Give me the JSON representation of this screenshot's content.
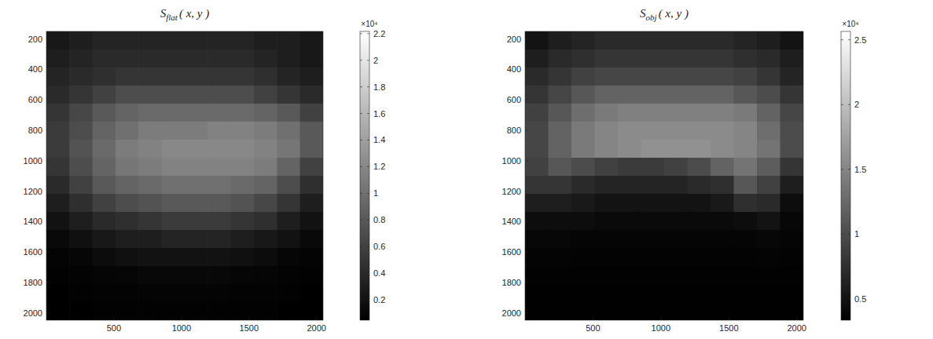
{
  "chart_data": [
    {
      "type": "heatmap",
      "title": "S",
      "title_subscript": "flat",
      "title_suffix": "( x, y )",
      "xlim": [
        0,
        2048
      ],
      "ylim": [
        150,
        2048
      ],
      "xticks": [
        500,
        1000,
        1500,
        2000
      ],
      "yticks": [
        200,
        400,
        600,
        800,
        1000,
        1200,
        1400,
        1600,
        1800,
        2000
      ],
      "cells": [
        [
          2500,
          3000,
          3500,
          3500,
          3500,
          3500,
          3500,
          3500,
          3500,
          3000,
          3000,
          2500
        ],
        [
          3000,
          3500,
          4000,
          4000,
          4000,
          4000,
          4000,
          4000,
          4000,
          3500,
          3000,
          2500
        ],
        [
          3500,
          4000,
          4500,
          5000,
          5000,
          5000,
          5000,
          5000,
          5000,
          4500,
          3500,
          3000
        ],
        [
          4000,
          5000,
          6000,
          7000,
          7000,
          7000,
          7000,
          7000,
          7000,
          6000,
          5000,
          4000
        ],
        [
          5000,
          6500,
          8000,
          9000,
          9500,
          9500,
          9500,
          9500,
          9500,
          9000,
          8000,
          6000
        ],
        [
          5500,
          7000,
          9000,
          10000,
          11000,
          11000,
          11000,
          11500,
          11500,
          11000,
          10000,
          8000
        ],
        [
          5500,
          7500,
          9500,
          11000,
          11500,
          12000,
          12000,
          12000,
          12000,
          11500,
          10500,
          8000
        ],
        [
          5000,
          7000,
          9000,
          10500,
          11000,
          11500,
          11500,
          11500,
          11500,
          11000,
          9000,
          6000
        ],
        [
          4000,
          6000,
          8000,
          9000,
          9500,
          10000,
          10000,
          10000,
          9500,
          9000,
          7000,
          4500
        ],
        [
          3000,
          4500,
          6000,
          7000,
          7500,
          8000,
          8000,
          8000,
          7500,
          6500,
          5000,
          3000
        ],
        [
          2000,
          3000,
          4000,
          4500,
          5000,
          5500,
          5500,
          5500,
          5000,
          4500,
          3000,
          2000
        ],
        [
          1200,
          1800,
          2500,
          3000,
          3000,
          3500,
          3500,
          3500,
          3000,
          2500,
          2000,
          1200
        ],
        [
          800,
          1000,
          1500,
          1800,
          2000,
          2000,
          2000,
          2000,
          1800,
          1500,
          1000,
          800
        ],
        [
          600,
          700,
          900,
          1000,
          1100,
          1100,
          1100,
          1100,
          1000,
          900,
          700,
          600
        ],
        [
          500,
          600,
          700,
          700,
          800,
          800,
          800,
          800,
          700,
          700,
          600,
          500
        ],
        [
          500,
          500,
          600,
          600,
          600,
          600,
          600,
          600,
          600,
          600,
          500,
          500
        ]
      ],
      "colorbar_range": [
        460,
        22170
      ],
      "colorbar_ticks": [
        {
          "value": 2000,
          "label": "0.2"
        },
        {
          "value": 4000,
          "label": "0.4"
        },
        {
          "value": 6000,
          "label": "0.6"
        },
        {
          "value": 8000,
          "label": "0.8"
        },
        {
          "value": 10000,
          "label": "1"
        },
        {
          "value": 12000,
          "label": "1.2"
        },
        {
          "value": 14000,
          "label": "1.4"
        },
        {
          "value": 16000,
          "label": "1.6"
        },
        {
          "value": 18000,
          "label": "1.8"
        },
        {
          "value": 20000,
          "label": "2"
        },
        {
          "value": 22000,
          "label": "2.2"
        }
      ],
      "colorbar_multiplier": "×10⁴"
    },
    {
      "type": "heatmap",
      "title": "S",
      "title_subscript": "obj",
      "title_suffix": "( x, y )",
      "xlim": [
        0,
        2048
      ],
      "ylim": [
        150,
        2048
      ],
      "xticks": [
        500,
        1000,
        1500,
        2000
      ],
      "yticks": [
        200,
        400,
        600,
        800,
        1000,
        1200,
        1400,
        1600,
        1800,
        2000
      ],
      "cells": [
        [
          5000,
          6000,
          6500,
          7000,
          7000,
          7000,
          7000,
          7000,
          7000,
          6500,
          6000,
          5000
        ],
        [
          6000,
          7000,
          7500,
          8000,
          8000,
          8000,
          8000,
          8000,
          8000,
          7500,
          7000,
          6000
        ],
        [
          7000,
          8000,
          9000,
          9500,
          9500,
          9500,
          9500,
          9500,
          9500,
          9000,
          8000,
          6500
        ],
        [
          8000,
          9500,
          11000,
          12000,
          12000,
          12000,
          12000,
          12000,
          12000,
          11000,
          10000,
          8000
        ],
        [
          9000,
          11000,
          13000,
          14000,
          14500,
          14500,
          14500,
          14500,
          14500,
          14000,
          12000,
          9500
        ],
        [
          9500,
          12000,
          14000,
          15000,
          15500,
          15500,
          15500,
          15500,
          15500,
          15000,
          13000,
          10000
        ],
        [
          9500,
          12000,
          14000,
          15000,
          15500,
          16000,
          16000,
          16000,
          15500,
          15000,
          13500,
          10000
        ],
        [
          9000,
          11000,
          10000,
          9000,
          8500,
          8500,
          9000,
          10000,
          12000,
          13500,
          11500,
          8000
        ],
        [
          8000,
          8000,
          7000,
          6500,
          6500,
          6500,
          6500,
          7000,
          7500,
          11000,
          9000,
          6000
        ],
        [
          6000,
          6000,
          5500,
          5000,
          5000,
          5000,
          5000,
          5000,
          5500,
          7500,
          7000,
          4500
        ],
        [
          4500,
          4500,
          4500,
          4200,
          4200,
          4200,
          4200,
          4200,
          4200,
          4500,
          5000,
          4000
        ],
        [
          4000,
          4000,
          3800,
          3800,
          3800,
          3800,
          3800,
          3800,
          3800,
          3800,
          4000,
          3800
        ],
        [
          3700,
          3700,
          3600,
          3600,
          3600,
          3600,
          3600,
          3600,
          3600,
          3600,
          3700,
          3600
        ],
        [
          3500,
          3500,
          3500,
          3500,
          3500,
          3500,
          3500,
          3500,
          3500,
          3500,
          3500,
          3500
        ],
        [
          3450,
          3450,
          3450,
          3450,
          3450,
          3450,
          3450,
          3450,
          3450,
          3450,
          3450,
          3450
        ],
        [
          3400,
          3400,
          3400,
          3400,
          3400,
          3400,
          3400,
          3400,
          3400,
          3400,
          3400,
          3400
        ]
      ],
      "colorbar_range": [
        3350,
        25650
      ],
      "colorbar_ticks": [
        {
          "value": 5000,
          "label": "0.5"
        },
        {
          "value": 10000,
          "label": "1"
        },
        {
          "value": 15000,
          "label": "1.5"
        },
        {
          "value": 20000,
          "label": "2"
        },
        {
          "value": 25000,
          "label": "2.5"
        }
      ],
      "colorbar_multiplier": "×10⁴"
    }
  ]
}
